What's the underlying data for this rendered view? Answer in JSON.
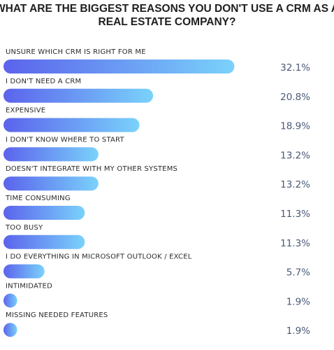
{
  "chart_data": {
    "type": "bar",
    "orientation": "horizontal",
    "title_lines": [
      "WHAT ARE THE BIGGEST REASONS YOU DON'T USE A CRM AS A",
      "REAL ESTATE COMPANY?"
    ],
    "categories": [
      "UNSURE WHICH CRM IS RIGHT FOR ME",
      "I DON'T NEED A CRM",
      "EXPENSIVE",
      "I DON'T KNOW WHERE TO START",
      "DOESN'T INTEGRATE WITH MY OTHER SYSTEMS",
      "TIME CONSUMING",
      "TOO BUSY",
      "I DO EVERYTHING IN MICROSOFT OUTLOOK / EXCEL",
      "INTIMIDATED",
      "MISSING NEEDED FEATURES"
    ],
    "values": [
      32.1,
      20.8,
      18.9,
      13.2,
      13.2,
      11.3,
      11.3,
      5.7,
      1.9,
      1.9
    ],
    "value_labels": [
      "32.1%",
      "20.8%",
      "18.9%",
      "13.2%",
      "13.2%",
      "11.3%",
      "11.3%",
      "5.7%",
      "1.9%",
      "1.9%"
    ],
    "xlim": [
      0,
      34
    ],
    "grid": false,
    "legend": "none",
    "colors": {
      "bar_gradient_start": "#5b63ec",
      "bar_gradient_end": "#7ad2fb",
      "value_text": "#4a5a78",
      "title_text": "#1f1f1f",
      "label_text": "#2a2a2a"
    }
  }
}
